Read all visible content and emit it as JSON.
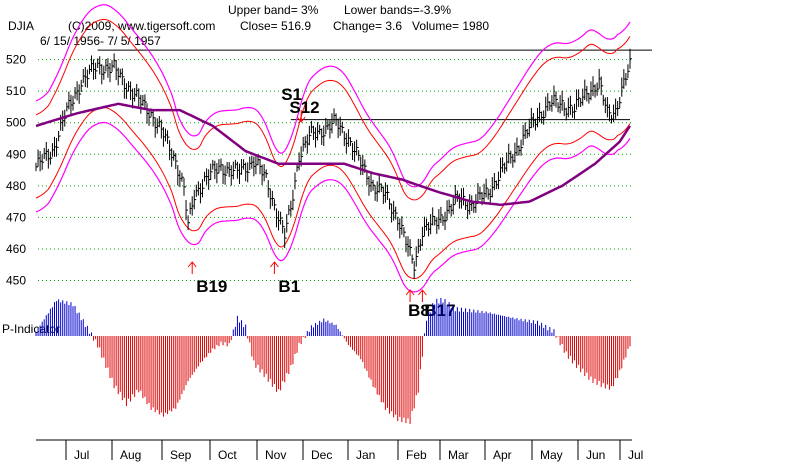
{
  "header": {
    "upper_band": "Upper band= 3%",
    "lower_bands": "Lower bands=-3.9%",
    "symbol": "DJIA",
    "copyright": "(C)2009, www.tigersoft.com",
    "close": "Close=  516.9",
    "change": "Change= 3.6",
    "volume": "Volume= 1980",
    "date_range": "6/ 15/ 1956- 7/ 5/ 1957"
  },
  "indicator_label": "P-Indicator",
  "colors": {
    "price_bar": "#000000",
    "band_inner": "#ff0000",
    "band_outer": "#ff00ff",
    "moving_average": "#800080",
    "indicator_positive": "#0000cc",
    "indicator_negative": "#dd0000",
    "signal_arrow": "#ff0000",
    "gridline": "#00a000"
  },
  "chart_data": {
    "type": "line",
    "y_ticks": [
      "520",
      "510",
      "500",
      "490",
      "480",
      "470",
      "460",
      "450"
    ],
    "ylim": [
      447,
      524
    ],
    "months": [
      "Jul",
      "Aug",
      "Sep",
      "Oct",
      "Nov",
      "Dec",
      "Jan",
      "Feb",
      "Mar",
      "Apr",
      "May",
      "Jun",
      "Jul"
    ],
    "grid": true,
    "horizontal_lines": [
      523,
      501
    ],
    "price_key": [
      [
        0,
        486
      ],
      [
        8,
        491
      ],
      [
        14,
        502
      ],
      [
        22,
        513
      ],
      [
        30,
        518
      ],
      [
        38,
        517
      ],
      [
        44,
        512
      ],
      [
        50,
        507
      ],
      [
        56,
        503
      ],
      [
        62,
        496
      ],
      [
        68,
        488
      ],
      [
        72,
        479
      ],
      [
        74,
        467
      ],
      [
        77,
        477
      ],
      [
        82,
        482
      ],
      [
        90,
        486
      ],
      [
        98,
        484
      ],
      [
        106,
        488
      ],
      [
        112,
        482
      ],
      [
        117,
        472
      ],
      [
        121,
        464
      ],
      [
        124,
        473
      ],
      [
        128,
        490
      ],
      [
        134,
        496
      ],
      [
        140,
        498
      ],
      [
        146,
        500
      ],
      [
        152,
        495
      ],
      [
        158,
        487
      ],
      [
        164,
        480
      ],
      [
        170,
        477
      ],
      [
        176,
        470
      ],
      [
        182,
        458
      ],
      [
        184,
        455
      ],
      [
        188,
        466
      ],
      [
        194,
        468
      ],
      [
        200,
        472
      ],
      [
        206,
        476
      ],
      [
        212,
        474
      ],
      [
        220,
        478
      ],
      [
        226,
        484
      ],
      [
        232,
        490
      ],
      [
        238,
        496
      ],
      [
        244,
        502
      ],
      [
        250,
        506
      ],
      [
        256,
        506
      ],
      [
        262,
        504
      ],
      [
        268,
        510
      ],
      [
        274,
        512
      ],
      [
        278,
        503
      ],
      [
        282,
        504
      ],
      [
        286,
        512
      ],
      [
        289,
        518
      ]
    ],
    "ma_key": [
      [
        0,
        499
      ],
      [
        20,
        503
      ],
      [
        40,
        506
      ],
      [
        56,
        504
      ],
      [
        70,
        504
      ],
      [
        86,
        499
      ],
      [
        102,
        491
      ],
      [
        118,
        487
      ],
      [
        134,
        487
      ],
      [
        150,
        487
      ],
      [
        164,
        484
      ],
      [
        178,
        482
      ],
      [
        196,
        478
      ],
      [
        212,
        475
      ],
      [
        226,
        474
      ],
      [
        240,
        475
      ],
      [
        256,
        480
      ],
      [
        272,
        487
      ],
      [
        284,
        494
      ],
      [
        289,
        499
      ]
    ],
    "band_inner_pct": 3,
    "band_outer_pct": 3.9,
    "indicator_key": [
      [
        0,
        5
      ],
      [
        10,
        40
      ],
      [
        18,
        35
      ],
      [
        26,
        5
      ],
      [
        30,
        -10
      ],
      [
        38,
        -55
      ],
      [
        44,
        -75
      ],
      [
        50,
        -60
      ],
      [
        56,
        -80
      ],
      [
        62,
        -88
      ],
      [
        68,
        -80
      ],
      [
        74,
        -50
      ],
      [
        80,
        -30
      ],
      [
        86,
        -15
      ],
      [
        90,
        -8
      ],
      [
        94,
        -10
      ],
      [
        98,
        20
      ],
      [
        102,
        10
      ],
      [
        106,
        -30
      ],
      [
        112,
        -45
      ],
      [
        118,
        -62
      ],
      [
        124,
        -35
      ],
      [
        128,
        -10
      ],
      [
        134,
        10
      ],
      [
        140,
        18
      ],
      [
        146,
        12
      ],
      [
        152,
        -10
      ],
      [
        158,
        -25
      ],
      [
        164,
        -55
      ],
      [
        170,
        -80
      ],
      [
        176,
        -92
      ],
      [
        182,
        -95
      ],
      [
        186,
        -60
      ],
      [
        190,
        20
      ],
      [
        194,
        38
      ],
      [
        198,
        40
      ],
      [
        204,
        30
      ],
      [
        212,
        28
      ],
      [
        220,
        26
      ],
      [
        228,
        22
      ],
      [
        236,
        18
      ],
      [
        244,
        15
      ],
      [
        252,
        5
      ],
      [
        258,
        -20
      ],
      [
        264,
        -35
      ],
      [
        270,
        -48
      ],
      [
        276,
        -55
      ],
      [
        280,
        -58
      ],
      [
        284,
        -40
      ],
      [
        289,
        -10
      ]
    ],
    "signals": [
      {
        "label": "B19",
        "type": "buy",
        "day": 76
      },
      {
        "label": "B1",
        "type": "buy",
        "day": 116
      },
      {
        "label": "S1",
        "type": "sell",
        "day": 130
      },
      {
        "label": "S12",
        "type": "sell",
        "day": 133
      },
      {
        "label": "B8",
        "type": "buy",
        "day": 182
      },
      {
        "label": "B17",
        "type": "buy",
        "day": 188
      }
    ]
  }
}
